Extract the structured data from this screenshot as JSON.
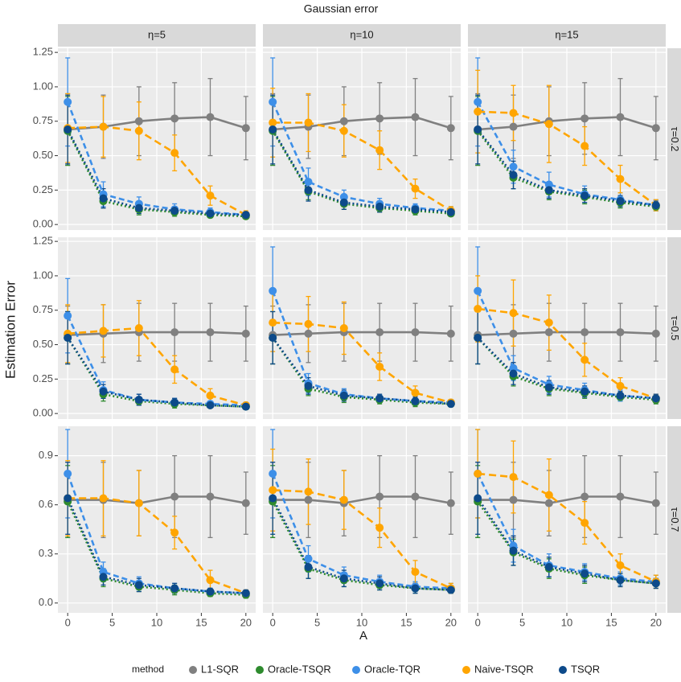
{
  "chart_data": {
    "type": "line",
    "title": "Gaussian error",
    "x_label": "A",
    "y_label": "Estimation Error",
    "legend_title": "method",
    "x": [
      0,
      4,
      8,
      12,
      16,
      20
    ],
    "xlim": [
      -1.1,
      21.1
    ],
    "xticks": [
      0,
      5,
      10,
      15,
      20
    ],
    "grid": true,
    "series": [
      {
        "name": "L1-SQR",
        "color": "#808080",
        "linestyle": "solid"
      },
      {
        "name": "Oracle-TSQR",
        "color": "#2e8b2e",
        "linestyle": "dotted"
      },
      {
        "name": "Oracle-TQR",
        "color": "#3d8fe8",
        "linestyle": "dashed"
      },
      {
        "name": "Naive-TSQR",
        "color": "#ffa500",
        "linestyle": "longdash"
      },
      {
        "name": "TSQR",
        "color": "#0d4a8a",
        "linestyle": "dotted"
      }
    ],
    "col_labels": [
      "η=5",
      "η=10",
      "η=15"
    ],
    "rows": [
      {
        "label": "τ=0.2",
        "ylim": [
          -0.04,
          1.28
        ],
        "yticks": [
          {
            "value": 0,
            "label": "0.00"
          },
          0.25,
          {
            "value": 0.5,
            "label": "0.50"
          },
          0.75,
          {
            "value": 1,
            "label": "1.00"
          },
          1.25
        ],
        "panels": [
          {
            "values": [
              [
                0.69,
                0.71,
                0.75,
                0.77,
                0.78,
                0.7
              ],
              [
                0.68,
                0.17,
                0.11,
                0.09,
                0.07,
                0.06
              ],
              [
                0.89,
                0.22,
                0.15,
                0.11,
                0.09,
                0.07
              ],
              [
                0.7,
                0.71,
                0.68,
                0.52,
                0.21,
                0.07
              ],
              [
                0.69,
                0.19,
                0.12,
                0.1,
                0.08,
                0.07
              ]
            ],
            "errors": [
              [
                0.26,
                0.23,
                0.25,
                0.26,
                0.28,
                0.23
              ],
              [
                0.25,
                0.05,
                0.04,
                0.03,
                0.02,
                0.02
              ],
              [
                0.32,
                0.09,
                0.05,
                0.04,
                0.03,
                0.02
              ],
              [
                0.25,
                0.22,
                0.21,
                0.13,
                0.07,
                0.03
              ],
              [
                0.25,
                0.07,
                0.04,
                0.03,
                0.03,
                0.02
              ]
            ]
          },
          {
            "values": [
              [
                0.69,
                0.71,
                0.75,
                0.77,
                0.78,
                0.7
              ],
              [
                0.68,
                0.24,
                0.15,
                0.12,
                0.1,
                0.08
              ],
              [
                0.89,
                0.31,
                0.2,
                0.15,
                0.12,
                0.1
              ],
              [
                0.74,
                0.74,
                0.68,
                0.54,
                0.26,
                0.1
              ],
              [
                0.69,
                0.25,
                0.16,
                0.13,
                0.11,
                0.09
              ]
            ],
            "errors": [
              [
                0.26,
                0.23,
                0.25,
                0.26,
                0.28,
                0.23
              ],
              [
                0.25,
                0.06,
                0.04,
                0.03,
                0.03,
                0.02
              ],
              [
                0.32,
                0.1,
                0.05,
                0.04,
                0.03,
                0.03
              ],
              [
                0.25,
                0.21,
                0.19,
                0.14,
                0.07,
                0.03
              ],
              [
                0.25,
                0.08,
                0.05,
                0.04,
                0.03,
                0.03
              ]
            ]
          },
          {
            "values": [
              [
                0.69,
                0.71,
                0.75,
                0.77,
                0.78,
                0.7
              ],
              [
                0.68,
                0.34,
                0.24,
                0.2,
                0.16,
                0.13
              ],
              [
                0.89,
                0.42,
                0.29,
                0.22,
                0.18,
                0.14
              ],
              [
                0.82,
                0.81,
                0.73,
                0.57,
                0.33,
                0.14
              ],
              [
                0.69,
                0.36,
                0.25,
                0.21,
                0.17,
                0.14
              ]
            ],
            "errors": [
              [
                0.26,
                0.23,
                0.25,
                0.26,
                0.28,
                0.23
              ],
              [
                0.25,
                0.08,
                0.06,
                0.05,
                0.04,
                0.03
              ],
              [
                0.32,
                0.12,
                0.09,
                0.06,
                0.05,
                0.04
              ],
              [
                0.3,
                0.2,
                0.28,
                0.14,
                0.1,
                0.04
              ],
              [
                0.25,
                0.1,
                0.06,
                0.05,
                0.04,
                0.03
              ]
            ]
          }
        ]
      },
      {
        "label": "τ=0.5",
        "ylim": [
          -0.04,
          1.28
        ],
        "yticks": [
          {
            "value": 0,
            "label": "0.00"
          },
          0.25,
          {
            "value": 0.5,
            "label": "0.50"
          },
          0.75,
          {
            "value": 1,
            "label": "1.00"
          },
          1.25
        ],
        "panels": [
          {
            "values": [
              [
                0.57,
                0.58,
                0.59,
                0.59,
                0.59,
                0.58
              ],
              [
                0.55,
                0.14,
                0.09,
                0.07,
                0.06,
                0.05
              ],
              [
                0.71,
                0.17,
                0.1,
                0.08,
                0.07,
                0.06
              ],
              [
                0.58,
                0.6,
                0.62,
                0.32,
                0.13,
                0.06
              ],
              [
                0.55,
                0.16,
                0.1,
                0.08,
                0.06,
                0.05
              ]
            ],
            "errors": [
              [
                0.21,
                0.21,
                0.21,
                0.21,
                0.21,
                0.2
              ],
              [
                0.19,
                0.05,
                0.03,
                0.03,
                0.02,
                0.02
              ],
              [
                0.27,
                0.06,
                0.04,
                0.03,
                0.02,
                0.02
              ],
              [
                0.21,
                0.19,
                0.2,
                0.1,
                0.05,
                0.02
              ],
              [
                0.19,
                0.05,
                0.04,
                0.03,
                0.02,
                0.02
              ]
            ]
          },
          {
            "values": [
              [
                0.57,
                0.58,
                0.59,
                0.59,
                0.59,
                0.58
              ],
              [
                0.55,
                0.18,
                0.12,
                0.1,
                0.08,
                0.07
              ],
              [
                0.89,
                0.22,
                0.14,
                0.11,
                0.09,
                0.08
              ],
              [
                0.66,
                0.65,
                0.62,
                0.34,
                0.15,
                0.08
              ],
              [
                0.55,
                0.2,
                0.13,
                0.11,
                0.09,
                0.07
              ]
            ],
            "errors": [
              [
                0.21,
                0.21,
                0.21,
                0.21,
                0.21,
                0.2
              ],
              [
                0.19,
                0.05,
                0.04,
                0.03,
                0.03,
                0.02
              ],
              [
                0.32,
                0.07,
                0.04,
                0.03,
                0.03,
                0.02
              ],
              [
                0.21,
                0.2,
                0.19,
                0.1,
                0.05,
                0.02
              ],
              [
                0.19,
                0.06,
                0.04,
                0.03,
                0.03,
                0.02
              ]
            ]
          },
          {
            "values": [
              [
                0.57,
                0.58,
                0.59,
                0.59,
                0.59,
                0.58
              ],
              [
                0.55,
                0.27,
                0.18,
                0.15,
                0.12,
                0.1
              ],
              [
                0.89,
                0.33,
                0.21,
                0.17,
                0.13,
                0.11
              ],
              [
                0.76,
                0.73,
                0.66,
                0.39,
                0.2,
                0.11
              ],
              [
                0.55,
                0.29,
                0.19,
                0.16,
                0.13,
                0.11
              ]
            ],
            "errors": [
              [
                0.21,
                0.21,
                0.21,
                0.21,
                0.21,
                0.2
              ],
              [
                0.19,
                0.07,
                0.05,
                0.04,
                0.03,
                0.03
              ],
              [
                0.32,
                0.09,
                0.06,
                0.05,
                0.04,
                0.03
              ],
              [
                0.24,
                0.24,
                0.2,
                0.12,
                0.06,
                0.03
              ],
              [
                0.19,
                0.08,
                0.05,
                0.04,
                0.03,
                0.03
              ]
            ]
          }
        ]
      },
      {
        "label": "τ=0.7",
        "ylim": [
          -0.06,
          1.08
        ],
        "yticks": [
          {
            "value": 0,
            "label": "0.0"
          },
          0.3,
          0.6,
          0.9
        ],
        "panels": [
          {
            "values": [
              [
                0.63,
                0.63,
                0.61,
                0.65,
                0.65,
                0.61
              ],
              [
                0.62,
                0.15,
                0.1,
                0.08,
                0.06,
                0.05
              ],
              [
                0.79,
                0.19,
                0.12,
                0.09,
                0.07,
                0.06
              ],
              [
                0.64,
                0.64,
                0.61,
                0.43,
                0.14,
                0.06
              ],
              [
                0.64,
                0.16,
                0.11,
                0.09,
                0.07,
                0.06
              ]
            ],
            "errors": [
              [
                0.23,
                0.23,
                0.2,
                0.25,
                0.25,
                0.19
              ],
              [
                0.22,
                0.05,
                0.03,
                0.03,
                0.02,
                0.02
              ],
              [
                0.27,
                0.06,
                0.04,
                0.03,
                0.02,
                0.02
              ],
              [
                0.23,
                0.23,
                0.2,
                0.1,
                0.06,
                0.02
              ],
              [
                0.22,
                0.05,
                0.04,
                0.03,
                0.02,
                0.02
              ]
            ]
          },
          {
            "values": [
              [
                0.63,
                0.63,
                0.61,
                0.65,
                0.65,
                0.61
              ],
              [
                0.62,
                0.21,
                0.14,
                0.11,
                0.09,
                0.08
              ],
              [
                0.79,
                0.27,
                0.17,
                0.13,
                0.1,
                0.09
              ],
              [
                0.69,
                0.68,
                0.63,
                0.46,
                0.19,
                0.09
              ],
              [
                0.64,
                0.22,
                0.15,
                0.12,
                0.09,
                0.08
              ]
            ],
            "errors": [
              [
                0.23,
                0.23,
                0.2,
                0.25,
                0.25,
                0.19
              ],
              [
                0.22,
                0.06,
                0.04,
                0.03,
                0.03,
                0.02
              ],
              [
                0.27,
                0.08,
                0.05,
                0.04,
                0.03,
                0.03
              ],
              [
                0.25,
                0.2,
                0.18,
                0.12,
                0.07,
                0.03
              ],
              [
                0.22,
                0.07,
                0.05,
                0.04,
                0.03,
                0.02
              ]
            ]
          },
          {
            "values": [
              [
                0.63,
                0.63,
                0.61,
                0.65,
                0.65,
                0.61
              ],
              [
                0.62,
                0.31,
                0.21,
                0.17,
                0.14,
                0.12
              ],
              [
                0.79,
                0.35,
                0.23,
                0.19,
                0.15,
                0.13
              ],
              [
                0.79,
                0.77,
                0.66,
                0.49,
                0.23,
                0.13
              ],
              [
                0.64,
                0.32,
                0.22,
                0.18,
                0.14,
                0.12
              ]
            ],
            "errors": [
              [
                0.23,
                0.23,
                0.2,
                0.25,
                0.25,
                0.19
              ],
              [
                0.22,
                0.08,
                0.06,
                0.05,
                0.04,
                0.03
              ],
              [
                0.27,
                0.1,
                0.07,
                0.05,
                0.04,
                0.04
              ],
              [
                0.27,
                0.22,
                0.22,
                0.13,
                0.07,
                0.04
              ],
              [
                0.22,
                0.09,
                0.06,
                0.05,
                0.04,
                0.03
              ]
            ]
          }
        ]
      }
    ]
  }
}
